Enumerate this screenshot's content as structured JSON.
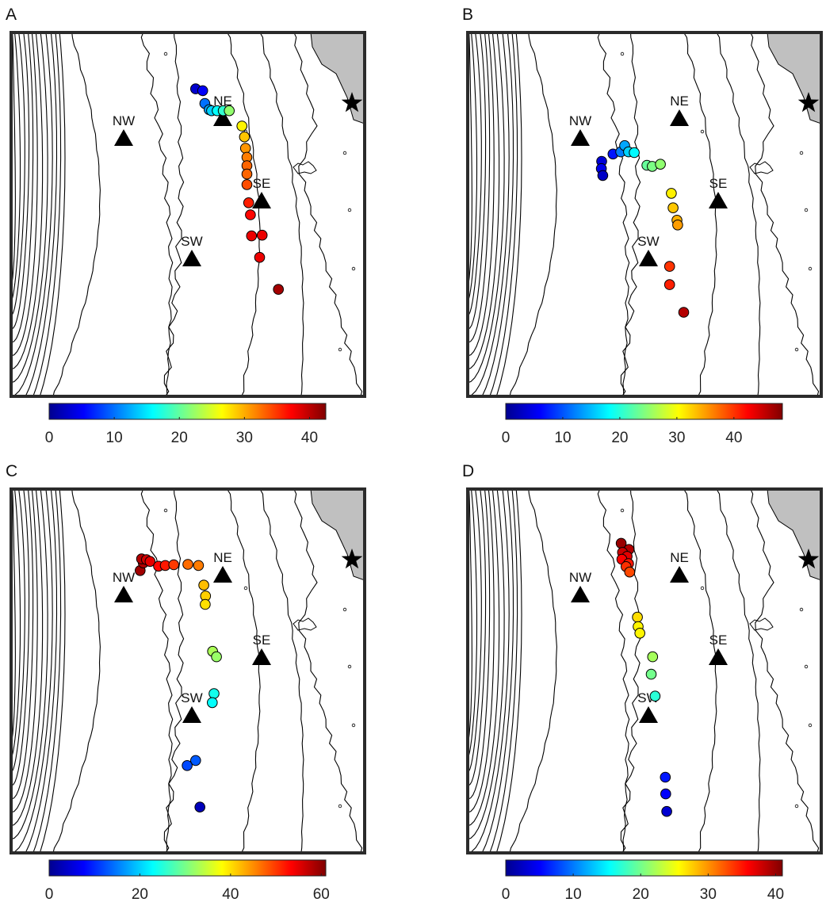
{
  "colormap": [
    "#00008f",
    "#0000ff",
    "#0080ff",
    "#00ffff",
    "#80ff80",
    "#ffff00",
    "#ff8000",
    "#ff0000",
    "#800000"
  ],
  "colors": {
    "land": "#c0c0c0",
    "frame": "#2b2b2b",
    "contour": "#000000",
    "marker": "#000000"
  },
  "site_labels": {
    "nw": "NW",
    "ne": "NE",
    "sw": "SW",
    "se": "SE"
  },
  "icons": {
    "site": "triangle-icon",
    "reference": "star-icon"
  },
  "panels": [
    {
      "label": "A",
      "colorbar": {
        "min": 0,
        "max": 42.5,
        "ticks": [
          0,
          10,
          20,
          30,
          40
        ]
      },
      "points": [
        {
          "lon": 0.522,
          "lat": 0.845,
          "v": 3
        },
        {
          "lon": 0.542,
          "lat": 0.84,
          "v": 5
        },
        {
          "lon": 0.548,
          "lat": 0.805,
          "v": 10
        },
        {
          "lon": 0.56,
          "lat": 0.788,
          "v": 12
        },
        {
          "lon": 0.567,
          "lat": 0.785,
          "v": 14
        },
        {
          "lon": 0.583,
          "lat": 0.785,
          "v": 16
        },
        {
          "lon": 0.6,
          "lat": 0.785,
          "v": 18
        },
        {
          "lon": 0.617,
          "lat": 0.785,
          "v": 22
        },
        {
          "lon": 0.653,
          "lat": 0.743,
          "v": 27
        },
        {
          "lon": 0.66,
          "lat": 0.713,
          "v": 29
        },
        {
          "lon": 0.663,
          "lat": 0.682,
          "v": 31
        },
        {
          "lon": 0.667,
          "lat": 0.657,
          "v": 32
        },
        {
          "lon": 0.667,
          "lat": 0.634,
          "v": 33
        },
        {
          "lon": 0.667,
          "lat": 0.611,
          "v": 33
        },
        {
          "lon": 0.667,
          "lat": 0.582,
          "v": 34
        },
        {
          "lon": 0.672,
          "lat": 0.532,
          "v": 36
        },
        {
          "lon": 0.677,
          "lat": 0.499,
          "v": 37
        },
        {
          "lon": 0.68,
          "lat": 0.441,
          "v": 38
        },
        {
          "lon": 0.71,
          "lat": 0.443,
          "v": 38
        },
        {
          "lon": 0.703,
          "lat": 0.382,
          "v": 38
        },
        {
          "lon": 0.756,
          "lat": 0.294,
          "v": 41
        }
      ]
    },
    {
      "label": "B",
      "colorbar": {
        "min": 0,
        "max": 48.5,
        "ticks": [
          0,
          10,
          20,
          30,
          40
        ]
      },
      "points": [
        {
          "lon": 0.379,
          "lat": 0.646,
          "v": 4
        },
        {
          "lon": 0.378,
          "lat": 0.626,
          "v": 5
        },
        {
          "lon": 0.382,
          "lat": 0.607,
          "v": 3
        },
        {
          "lon": 0.411,
          "lat": 0.666,
          "v": 7
        },
        {
          "lon": 0.433,
          "lat": 0.672,
          "v": 12
        },
        {
          "lon": 0.444,
          "lat": 0.689,
          "v": 14
        },
        {
          "lon": 0.455,
          "lat": 0.672,
          "v": 16
        },
        {
          "lon": 0.471,
          "lat": 0.67,
          "v": 18
        },
        {
          "lon": 0.507,
          "lat": 0.635,
          "v": 23
        },
        {
          "lon": 0.522,
          "lat": 0.632,
          "v": 24
        },
        {
          "lon": 0.545,
          "lat": 0.638,
          "v": 25
        },
        {
          "lon": 0.576,
          "lat": 0.558,
          "v": 31
        },
        {
          "lon": 0.581,
          "lat": 0.518,
          "v": 33
        },
        {
          "lon": 0.592,
          "lat": 0.484,
          "v": 34
        },
        {
          "lon": 0.594,
          "lat": 0.471,
          "v": 35
        },
        {
          "lon": 0.571,
          "lat": 0.357,
          "v": 40
        },
        {
          "lon": 0.571,
          "lat": 0.307,
          "v": 41
        },
        {
          "lon": 0.611,
          "lat": 0.231,
          "v": 46
        }
      ]
    },
    {
      "label": "C",
      "colorbar": {
        "min": 0,
        "max": 61,
        "ticks": [
          0,
          20,
          40,
          60
        ]
      },
      "points": [
        {
          "lon": 0.365,
          "lat": 0.776,
          "v": 59
        },
        {
          "lon": 0.374,
          "lat": 0.797,
          "v": 58
        },
        {
          "lon": 0.369,
          "lat": 0.808,
          "v": 58
        },
        {
          "lon": 0.383,
          "lat": 0.806,
          "v": 56
        },
        {
          "lon": 0.393,
          "lat": 0.801,
          "v": 55
        },
        {
          "lon": 0.417,
          "lat": 0.788,
          "v": 53
        },
        {
          "lon": 0.436,
          "lat": 0.79,
          "v": 52
        },
        {
          "lon": 0.46,
          "lat": 0.792,
          "v": 50
        },
        {
          "lon": 0.5,
          "lat": 0.793,
          "v": 47
        },
        {
          "lon": 0.53,
          "lat": 0.79,
          "v": 46
        },
        {
          "lon": 0.545,
          "lat": 0.736,
          "v": 42
        },
        {
          "lon": 0.55,
          "lat": 0.706,
          "v": 41
        },
        {
          "lon": 0.549,
          "lat": 0.683,
          "v": 40
        },
        {
          "lon": 0.57,
          "lat": 0.554,
          "v": 33
        },
        {
          "lon": 0.581,
          "lat": 0.539,
          "v": 32
        },
        {
          "lon": 0.574,
          "lat": 0.438,
          "v": 24
        },
        {
          "lon": 0.569,
          "lat": 0.413,
          "v": 23
        },
        {
          "lon": 0.522,
          "lat": 0.254,
          "v": 13
        },
        {
          "lon": 0.498,
          "lat": 0.24,
          "v": 12
        },
        {
          "lon": 0.534,
          "lat": 0.126,
          "v": 3
        }
      ]
    },
    {
      "label": "D",
      "colorbar": {
        "min": 0,
        "max": 41,
        "ticks": [
          0,
          10,
          20,
          30,
          40
        ]
      },
      "points": [
        {
          "lon": 0.434,
          "lat": 0.851,
          "v": 40
        },
        {
          "lon": 0.456,
          "lat": 0.834,
          "v": 39
        },
        {
          "lon": 0.438,
          "lat": 0.826,
          "v": 38
        },
        {
          "lon": 0.451,
          "lat": 0.815,
          "v": 37
        },
        {
          "lon": 0.436,
          "lat": 0.807,
          "v": 36
        },
        {
          "lon": 0.455,
          "lat": 0.795,
          "v": 35
        },
        {
          "lon": 0.448,
          "lat": 0.787,
          "v": 34
        },
        {
          "lon": 0.458,
          "lat": 0.772,
          "v": 33
        },
        {
          "lon": 0.48,
          "lat": 0.648,
          "v": 27
        },
        {
          "lon": 0.482,
          "lat": 0.622,
          "v": 26
        },
        {
          "lon": 0.487,
          "lat": 0.604,
          "v": 26
        },
        {
          "lon": 0.523,
          "lat": 0.539,
          "v": 22
        },
        {
          "lon": 0.519,
          "lat": 0.491,
          "v": 20
        },
        {
          "lon": 0.53,
          "lat": 0.431,
          "v": 17
        },
        {
          "lon": 0.559,
          "lat": 0.208,
          "v": 6
        },
        {
          "lon": 0.56,
          "lat": 0.162,
          "v": 5
        },
        {
          "lon": 0.563,
          "lat": 0.114,
          "v": 3
        }
      ]
    }
  ]
}
